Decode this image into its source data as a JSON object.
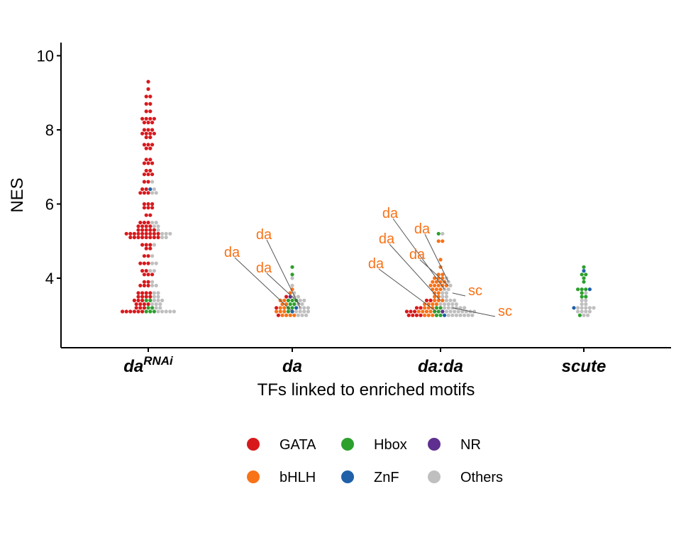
{
  "chart_data": {
    "type": "scatter",
    "subtype": "beeswarm",
    "xlabel": "TFs linked to enriched motifs",
    "ylabel": "NES",
    "ylim": [
      2.2,
      10.3
    ],
    "yticks": [
      4,
      6,
      8,
      10
    ],
    "grid": false,
    "legend_position": "bottom",
    "categories": [
      {
        "id": "daRNAi",
        "label": "da",
        "superscript": "RNAi"
      },
      {
        "id": "da",
        "label": "da",
        "superscript": ""
      },
      {
        "id": "dada",
        "label": "da:da",
        "superscript": ""
      },
      {
        "id": "scute",
        "label": "scute",
        "superscript": ""
      }
    ],
    "legend": [
      {
        "key": "GATA",
        "label": "GATA",
        "color": "#d7191c"
      },
      {
        "key": "Hbox",
        "label": "Hbox",
        "color": "#2ca02c"
      },
      {
        "key": "NR",
        "label": "NR",
        "color": "#5e2f8f"
      },
      {
        "key": "bHLH",
        "label": "bHLH",
        "color": "#f87217"
      },
      {
        "key": "ZnF",
        "label": "ZnF",
        "color": "#1f60a8"
      },
      {
        "key": "Others",
        "label": "Others",
        "color": "#bfbfbf"
      }
    ],
    "bins": {
      "daRNAi": [
        [
          3.1,
          [
            [
              "GATA",
              6
            ],
            [
              "Hbox",
              3
            ],
            [
              "Others",
              5
            ]
          ]
        ],
        [
          3.2,
          [
            [
              "GATA",
              3
            ],
            [
              "Hbox",
              2
            ],
            [
              "Others",
              2
            ]
          ]
        ],
        [
          3.3,
          [
            [
              "GATA",
              4
            ],
            [
              "Others",
              3
            ]
          ]
        ],
        [
          3.4,
          [
            [
              "GATA",
              3
            ],
            [
              "Hbox",
              2
            ],
            [
              "Others",
              3
            ]
          ]
        ],
        [
          3.5,
          [
            [
              "GATA",
              4
            ],
            [
              "Others",
              2
            ]
          ]
        ],
        [
          3.6,
          [
            [
              "GATA",
              4
            ],
            [
              "Others",
              2
            ]
          ]
        ],
        [
          3.8,
          [
            [
              "GATA",
              3
            ],
            [
              "Others",
              2
            ]
          ]
        ],
        [
          3.9,
          [
            [
              "GATA",
              2
            ],
            [
              "Others",
              1
            ]
          ]
        ],
        [
          4.1,
          [
            [
              "GATA",
              3
            ]
          ]
        ],
        [
          4.2,
          [
            [
              "GATA",
              2
            ],
            [
              "Others",
              2
            ]
          ]
        ],
        [
          4.4,
          [
            [
              "GATA",
              3
            ],
            [
              "Others",
              2
            ]
          ]
        ],
        [
          4.6,
          [
            [
              "GATA",
              2
            ],
            [
              "Others",
              1
            ]
          ]
        ],
        [
          4.8,
          [
            [
              "GATA",
              2
            ]
          ]
        ],
        [
          4.9,
          [
            [
              "GATA",
              3
            ],
            [
              "Others",
              1
            ]
          ]
        ],
        [
          5.1,
          [
            [
              "GATA",
              8
            ],
            [
              "Others",
              2
            ]
          ]
        ],
        [
          5.2,
          [
            [
              "GATA",
              9
            ],
            [
              "Others",
              3
            ]
          ]
        ],
        [
          5.3,
          [
            [
              "GATA",
              5
            ],
            [
              "Others",
              1
            ]
          ]
        ],
        [
          5.4,
          [
            [
              "GATA",
              4
            ],
            [
              "Others",
              2
            ]
          ]
        ],
        [
          5.5,
          [
            [
              "GATA",
              3
            ],
            [
              "Others",
              2
            ]
          ]
        ],
        [
          5.7,
          [
            [
              "GATA",
              2
            ]
          ]
        ],
        [
          5.9,
          [
            [
              "GATA",
              3
            ]
          ]
        ],
        [
          6.0,
          [
            [
              "GATA",
              3
            ]
          ]
        ],
        [
          6.3,
          [
            [
              "GATA",
              3
            ],
            [
              "Others",
              2
            ]
          ]
        ],
        [
          6.4,
          [
            [
              "GATA",
              2
            ],
            [
              "ZnF",
              1
            ],
            [
              "Others",
              1
            ]
          ]
        ],
        [
          6.6,
          [
            [
              "GATA",
              2
            ],
            [
              "Others",
              1
            ]
          ]
        ],
        [
          6.8,
          [
            [
              "GATA",
              3
            ]
          ]
        ],
        [
          6.9,
          [
            [
              "GATA",
              2
            ]
          ]
        ],
        [
          7.1,
          [
            [
              "GATA",
              3
            ]
          ]
        ],
        [
          7.2,
          [
            [
              "GATA",
              2
            ]
          ]
        ],
        [
          7.5,
          [
            [
              "GATA",
              2
            ]
          ]
        ],
        [
          7.6,
          [
            [
              "GATA",
              3
            ]
          ]
        ],
        [
          7.8,
          [
            [
              "GATA",
              2
            ]
          ]
        ],
        [
          7.9,
          [
            [
              "GATA",
              4
            ]
          ]
        ],
        [
          8.0,
          [
            [
              "GATA",
              3
            ]
          ]
        ],
        [
          8.2,
          [
            [
              "GATA",
              3
            ]
          ]
        ],
        [
          8.3,
          [
            [
              "GATA",
              4
            ]
          ]
        ],
        [
          8.5,
          [
            [
              "GATA",
              2
            ]
          ]
        ],
        [
          8.7,
          [
            [
              "GATA",
              2
            ]
          ]
        ],
        [
          8.9,
          [
            [
              "GATA",
              2
            ]
          ]
        ],
        [
          9.1,
          [
            [
              "GATA",
              1
            ]
          ]
        ],
        [
          9.3,
          [
            [
              "GATA",
              1
            ]
          ]
        ]
      ],
      "da": [
        [
          3.0,
          [
            [
              "GATA",
              1
            ],
            [
              "bHLH",
              4
            ],
            [
              "Others",
              3
            ]
          ]
        ],
        [
          3.1,
          [
            [
              "bHLH",
              3
            ],
            [
              "Hbox",
              1
            ],
            [
              "ZnF",
              1
            ],
            [
              "Others",
              4
            ]
          ]
        ],
        [
          3.2,
          [
            [
              "GATA",
              1
            ],
            [
              "bHLH",
              2
            ],
            [
              "Hbox",
              2
            ],
            [
              "ZnF",
              1
            ],
            [
              "Others",
              3
            ]
          ]
        ],
        [
          3.3,
          [
            [
              "bHLH",
              2
            ],
            [
              "Hbox",
              2
            ],
            [
              "Others",
              2
            ]
          ]
        ],
        [
          3.4,
          [
            [
              "bHLH",
              2
            ],
            [
              "Hbox",
              3
            ],
            [
              "Others",
              2
            ]
          ]
        ],
        [
          3.5,
          [
            [
              "GATA",
              1
            ],
            [
              "NR",
              1
            ],
            [
              "Others",
              2
            ]
          ]
        ],
        [
          3.6,
          [
            [
              "bHLH",
              1
            ],
            [
              "Others",
              1
            ]
          ]
        ],
        [
          3.7,
          [
            [
              "bHLH",
              1
            ]
          ]
        ],
        [
          3.8,
          [
            [
              "Others",
              1
            ]
          ]
        ],
        [
          4.0,
          [
            [
              "Others",
              1
            ]
          ]
        ],
        [
          4.1,
          [
            [
              "Hbox",
              1
            ]
          ]
        ],
        [
          4.3,
          [
            [
              "Hbox",
              1
            ]
          ]
        ]
      ],
      "dada": [
        [
          3.0,
          [
            [
              "GATA",
              4
            ],
            [
              "bHLH",
              3
            ],
            [
              "Hbox",
              2
            ],
            [
              "ZnF",
              1
            ],
            [
              "Others",
              7
            ]
          ]
        ],
        [
          3.1,
          [
            [
              "GATA",
              3
            ],
            [
              "bHLH",
              4
            ],
            [
              "Hbox",
              2
            ],
            [
              "NR",
              1
            ],
            [
              "Others",
              8
            ]
          ]
        ],
        [
          3.2,
          [
            [
              "GATA",
              2
            ],
            [
              "bHLH",
              3
            ],
            [
              "Hbox",
              2
            ],
            [
              "Others",
              6
            ]
          ]
        ],
        [
          3.3,
          [
            [
              "bHLH",
              4
            ],
            [
              "Others",
              5
            ]
          ]
        ],
        [
          3.4,
          [
            [
              "GATA",
              2
            ],
            [
              "bHLH",
              3
            ],
            [
              "Others",
              3
            ]
          ]
        ],
        [
          3.5,
          [
            [
              "bHLH",
              2
            ],
            [
              "Others",
              2
            ]
          ]
        ],
        [
          3.6,
          [
            [
              "bHLH",
              2
            ],
            [
              "Others",
              2
            ]
          ]
        ],
        [
          3.7,
          [
            [
              "bHLH",
              3
            ],
            [
              "Others",
              2
            ]
          ]
        ],
        [
          3.8,
          [
            [
              "bHLH",
              5
            ],
            [
              "Others",
              1
            ]
          ]
        ],
        [
          3.9,
          [
            [
              "bHLH",
              4
            ],
            [
              "Others",
              1
            ]
          ]
        ],
        [
          4.0,
          [
            [
              "bHLH",
              3
            ],
            [
              "Others",
              1
            ]
          ]
        ],
        [
          4.1,
          [
            [
              "bHLH",
              2
            ]
          ]
        ],
        [
          4.3,
          [
            [
              "bHLH",
              1
            ]
          ]
        ],
        [
          4.5,
          [
            [
              "bHLH",
              1
            ]
          ]
        ],
        [
          5.0,
          [
            [
              "bHLH",
              2
            ]
          ]
        ],
        [
          5.2,
          [
            [
              "Hbox",
              1
            ],
            [
              "Others",
              1
            ]
          ]
        ]
      ],
      "scute": [
        [
          3.0,
          [
            [
              "Hbox",
              1
            ],
            [
              "Others",
              2
            ]
          ]
        ],
        [
          3.1,
          [
            [
              "Others",
              4
            ]
          ]
        ],
        [
          3.2,
          [
            [
              "ZnF",
              1
            ],
            [
              "Others",
              5
            ]
          ]
        ],
        [
          3.3,
          [
            [
              "Others",
              2
            ]
          ]
        ],
        [
          3.4,
          [
            [
              "Others",
              2
            ]
          ]
        ],
        [
          3.5,
          [
            [
              "Hbox",
              2
            ]
          ]
        ],
        [
          3.6,
          [
            [
              "Hbox",
              1
            ],
            [
              "Others",
              1
            ]
          ]
        ],
        [
          3.7,
          [
            [
              "Hbox",
              3
            ],
            [
              "ZnF",
              1
            ]
          ]
        ],
        [
          3.9,
          [
            [
              "Hbox",
              1
            ]
          ]
        ],
        [
          4.0,
          [
            [
              "Hbox",
              1
            ]
          ]
        ],
        [
          4.1,
          [
            [
              "Hbox",
              2
            ]
          ]
        ],
        [
          4.2,
          [
            [
              "ZnF",
              1
            ]
          ]
        ],
        [
          4.3,
          [
            [
              "Hbox",
              1
            ]
          ]
        ]
      ]
    },
    "annotations": [
      {
        "text": "da",
        "category": "da",
        "target_y": 3.1,
        "target_dx": 0,
        "label_x": 327,
        "label_y": 355
      },
      {
        "text": "da",
        "category": "da",
        "target_y": 3.2,
        "target_dx": 2,
        "label_x": 372,
        "label_y": 330
      },
      {
        "text": "da",
        "category": "da",
        "target_y": 3.3,
        "target_dx": 2,
        "label_x": 372,
        "label_y": 377
      },
      {
        "text": "da",
        "category": "dada",
        "target_y": 3.1,
        "target_dx": -1,
        "label_x": 530,
        "label_y": 371
      },
      {
        "text": "da",
        "category": "dada",
        "target_y": 3.4,
        "target_dx": 0,
        "label_x": 545,
        "label_y": 336
      },
      {
        "text": "da",
        "category": "dada",
        "target_y": 3.7,
        "target_dx": 1,
        "label_x": 550,
        "label_y": 300
      },
      {
        "text": "da",
        "category": "dada",
        "target_y": 3.8,
        "target_dx": 2,
        "label_x": 588,
        "label_y": 358
      },
      {
        "text": "da",
        "category": "dada",
        "target_y": 3.9,
        "target_dx": 2,
        "label_x": 595,
        "label_y": 322
      },
      {
        "text": "sc",
        "category": "dada",
        "target_y": 3.6,
        "target_dx": 3,
        "label_x": 670,
        "label_y": 409
      },
      {
        "text": "sc",
        "category": "dada",
        "target_y": 3.2,
        "target_dx": 3,
        "label_x": 712,
        "label_y": 438
      }
    ],
    "annotation_color": "#f87217"
  }
}
